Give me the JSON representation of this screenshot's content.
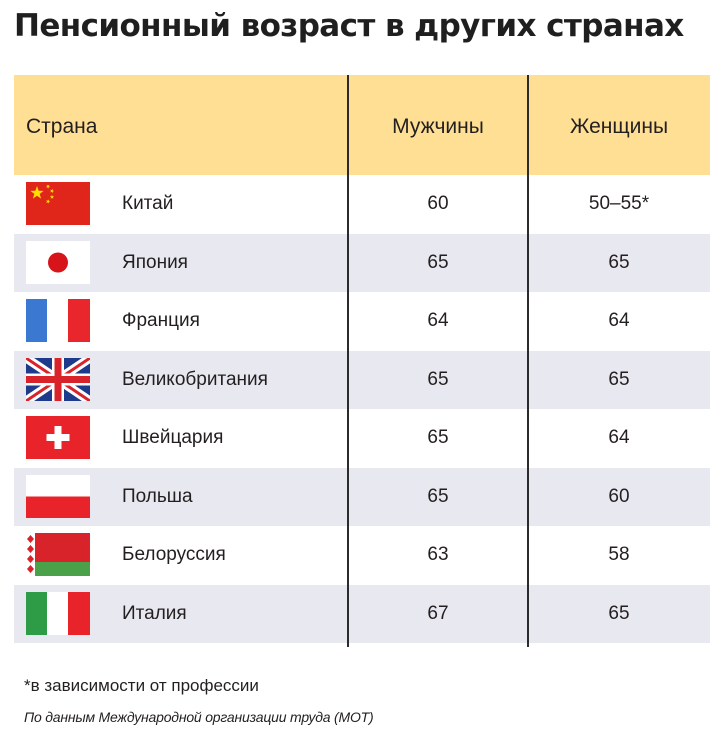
{
  "title": "Пенсионный возраст в других странах",
  "footnote": "*в зависимости от профессии",
  "source": "По данным Международной организации труда (МОТ)",
  "colors": {
    "header_bg": "#ffdf94",
    "shaded_row_bg": "#e8e8f0",
    "divider": "#2b2b2b"
  },
  "chart_data": {
    "type": "table",
    "title": "Пенсионный возраст в других странах",
    "columns": [
      "Страна",
      "Мужчины",
      "Женщины"
    ],
    "rows": [
      {
        "flag": "china-flag-icon",
        "country": "Китай",
        "men": "60",
        "women": "50–55*",
        "shaded": false
      },
      {
        "flag": "japan-flag-icon",
        "country": "Япония",
        "men": "65",
        "women": "65",
        "shaded": true
      },
      {
        "flag": "france-flag-icon",
        "country": "Франция",
        "men": "64",
        "women": "64",
        "shaded": false
      },
      {
        "flag": "uk-flag-icon",
        "country": "Великобритания",
        "men": "65",
        "women": "65",
        "shaded": true
      },
      {
        "flag": "switzerland-flag-icon",
        "country": "Швейцария",
        "men": "65",
        "women": "64",
        "shaded": false
      },
      {
        "flag": "poland-flag-icon",
        "country": "Польша",
        "men": "65",
        "women": "60",
        "shaded": true
      },
      {
        "flag": "belarus-flag-icon",
        "country": "Белоруссия",
        "men": "63",
        "women": "58",
        "shaded": false
      },
      {
        "flag": "italy-flag-icon",
        "country": "Италия",
        "men": "67",
        "women": "65",
        "shaded": true
      }
    ]
  }
}
